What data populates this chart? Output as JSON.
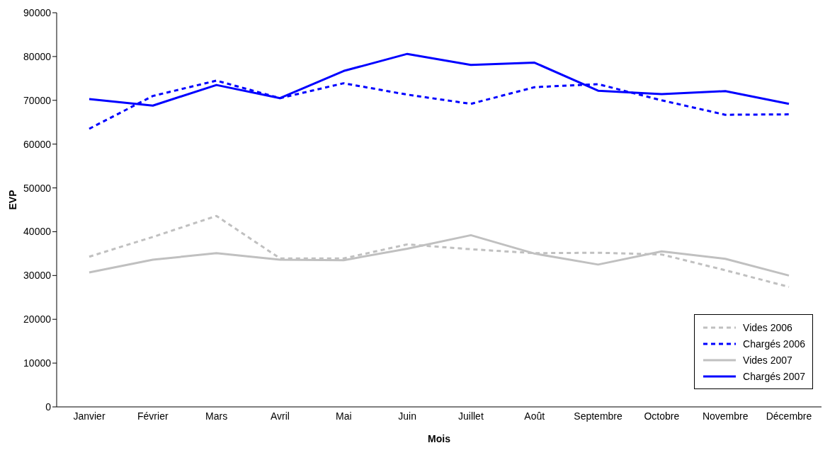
{
  "chart_data": {
    "type": "line",
    "xlabel": "Mois",
    "ylabel": "EVP",
    "categories": [
      "Janvier",
      "Février",
      "Mars",
      "Avril",
      "Mai",
      "Juin",
      "Juillet",
      "Août",
      "Septembre",
      "Octobre",
      "Novembre",
      "Décembre"
    ],
    "series": [
      {
        "name": "Vides 2006",
        "color": "#c0c0c0",
        "line_style": "dashed",
        "values": [
          34300,
          38800,
          43600,
          33900,
          33900,
          37100,
          36000,
          35100,
          35200,
          34800,
          31200,
          27400
        ]
      },
      {
        "name": "Chargés 2006",
        "color": "#0000ff",
        "line_style": "dashed",
        "values": [
          63500,
          71000,
          74500,
          70500,
          73900,
          71300,
          69200,
          73000,
          73700,
          70000,
          66700,
          66800
        ]
      },
      {
        "name": "Vides 2007",
        "color": "#c0c0c0",
        "line_style": "solid",
        "values": [
          30700,
          33600,
          35100,
          33600,
          33500,
          36100,
          39200,
          35000,
          32500,
          35500,
          33800,
          30000
        ]
      },
      {
        "name": "Chargés 2007",
        "color": "#0000ff",
        "line_style": "solid",
        "values": [
          70300,
          68800,
          73500,
          70500,
          76700,
          80600,
          78100,
          78600,
          72200,
          71400,
          72100,
          69200
        ]
      }
    ],
    "ylim": [
      0,
      90000
    ],
    "yticks": [
      0,
      10000,
      20000,
      30000,
      40000,
      50000,
      60000,
      70000,
      80000,
      90000
    ],
    "grid": false,
    "legend": "bottom right",
    "marker": "none"
  }
}
